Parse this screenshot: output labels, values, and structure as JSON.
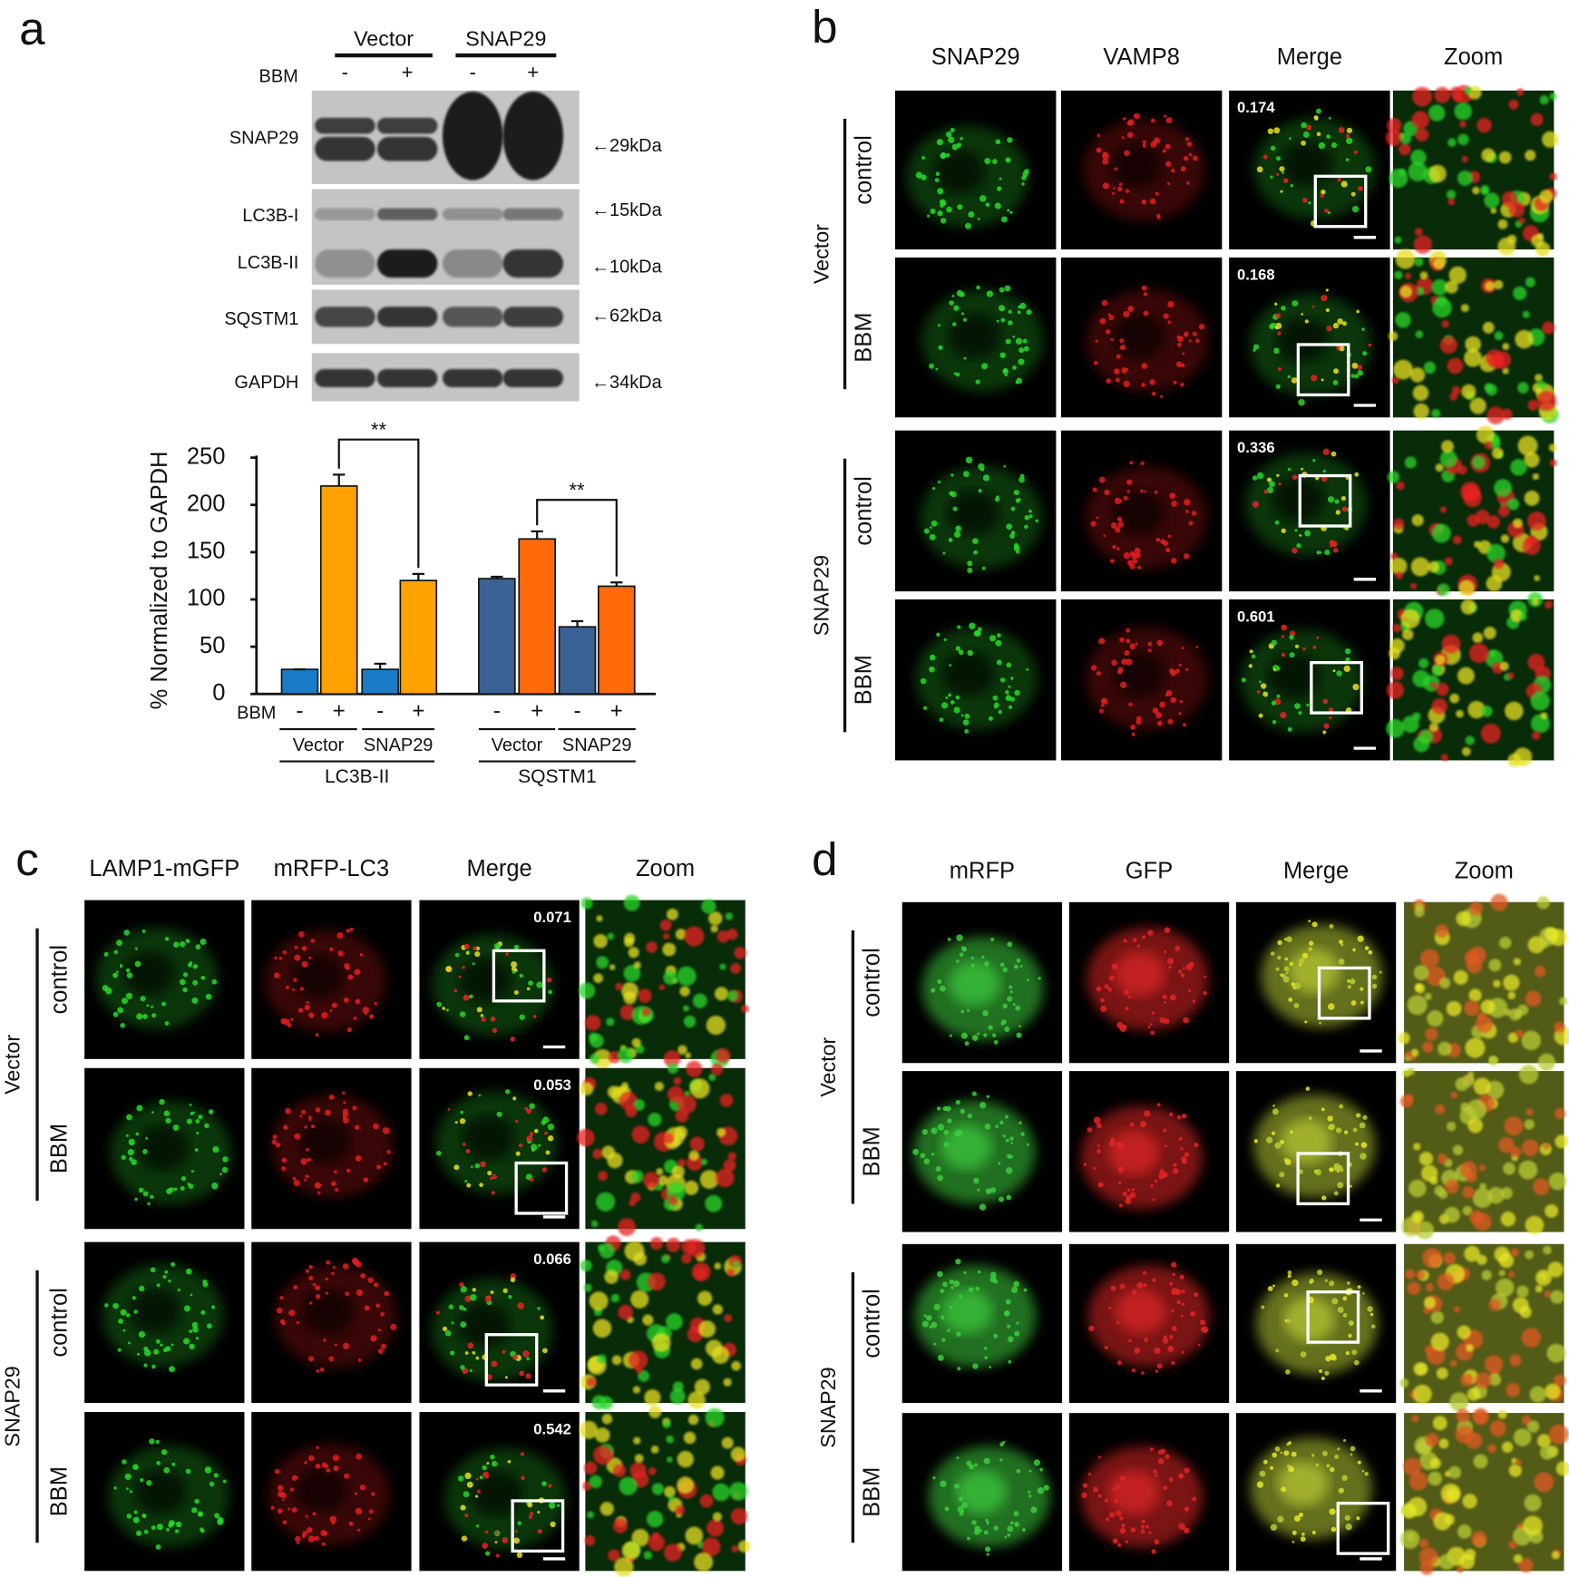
{
  "panel_a": {
    "label": "a",
    "groups": [
      "Vector",
      "SNAP29"
    ],
    "treatment_label": "BBM",
    "treatments": [
      "-",
      "+",
      "-",
      "+"
    ],
    "blots": [
      {
        "proteins": [
          "SNAP29"
        ],
        "sizes": [
          "←29kDa"
        ]
      },
      {
        "proteins": [
          "LC3B-I",
          "LC3B-II"
        ],
        "sizes": [
          "←15kDa",
          "←10kDa"
        ]
      },
      {
        "proteins": [
          "SQSTM1"
        ],
        "sizes": [
          "←62kDa"
        ]
      },
      {
        "proteins": [
          "GAPDH"
        ],
        "sizes": [
          "←34kDa"
        ]
      }
    ]
  },
  "chart_data": {
    "type": "bar",
    "y_label": "% Normalized to GAPDH",
    "ylim": [
      0,
      250
    ],
    "yticks": [
      0,
      50,
      100,
      150,
      200,
      250
    ],
    "x_label": "BBM",
    "categories": [
      "-",
      "+",
      "-",
      "+"
    ],
    "subgroups": [
      "Vector",
      "SNAP29"
    ],
    "series": [
      {
        "name": "LC3B-II",
        "values": [
          26,
          220,
          26,
          120
        ],
        "errors": [
          0,
          12,
          6,
          7
        ],
        "colors": [
          "#1a7cc6",
          "#ffa100",
          "#1a7cc6",
          "#ffa100"
        ]
      },
      {
        "name": "SQSTM1",
        "values": [
          122,
          164,
          71,
          114
        ],
        "errors": [
          2,
          8,
          6,
          4
        ],
        "colors": [
          "#3b6295",
          "#ff6a0a",
          "#3b6295",
          "#ff6a0a"
        ]
      }
    ],
    "significance": [
      "**",
      "**"
    ]
  },
  "panel_b": {
    "label": "b",
    "columns": [
      "SNAP29",
      "VAMP8",
      "Merge",
      "Zoom"
    ],
    "groups": [
      {
        "name": "Vector",
        "rows": [
          "control",
          "BBM"
        ]
      },
      {
        "name": "SNAP29",
        "rows": [
          "control",
          "BBM"
        ]
      }
    ],
    "coefficients": [
      [
        0.174,
        0.168
      ],
      [
        0.336,
        0.601
      ]
    ]
  },
  "panel_c": {
    "label": "c",
    "columns": [
      "LAMP1-mGFP",
      "mRFP-LC3",
      "Merge",
      "Zoom"
    ],
    "groups": [
      {
        "name": "Vector",
        "rows": [
          "control",
          "BBM"
        ]
      },
      {
        "name": "SNAP29",
        "rows": [
          "control",
          "BBM"
        ]
      }
    ],
    "coefficients": [
      [
        0.071,
        0.053
      ],
      [
        0.066,
        0.542
      ]
    ]
  },
  "panel_d": {
    "label": "d",
    "columns": [
      "mRFP",
      "GFP",
      "Merge",
      "Zoom"
    ],
    "groups": [
      {
        "name": "Vector",
        "rows": [
          "control",
          "BBM"
        ]
      },
      {
        "name": "SNAP29",
        "rows": [
          "control",
          "BBM"
        ]
      }
    ]
  }
}
